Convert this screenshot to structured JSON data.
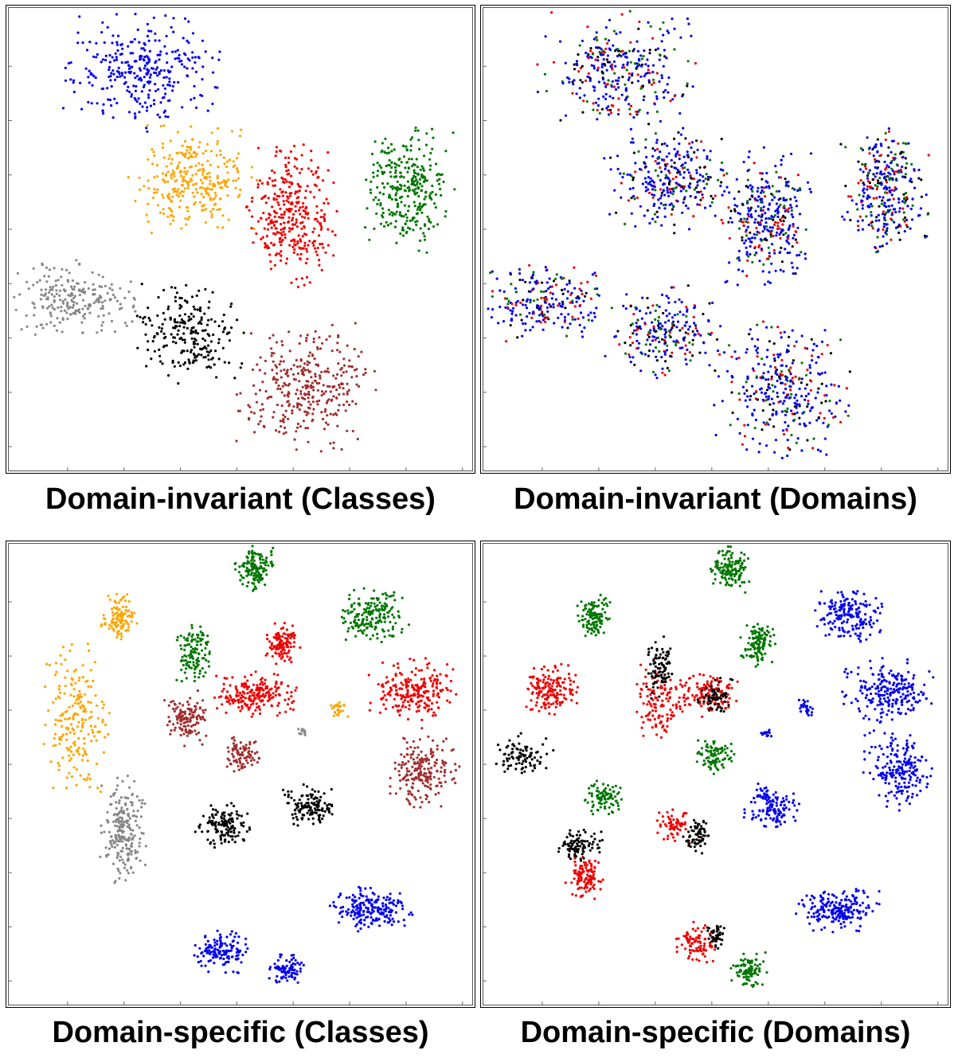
{
  "chart_data": [
    {
      "type": "scatter",
      "title": "Domain-invariant (Classes)",
      "coloring": "classes",
      "clusters": [
        {
          "label": "blue",
          "points": 700,
          "cx": 0.29,
          "cy": 0.14,
          "rx": 0.17,
          "ry": 0.13
        },
        {
          "label": "orange",
          "points": 650,
          "cx": 0.4,
          "cy": 0.37,
          "rx": 0.14,
          "ry": 0.12
        },
        {
          "label": "green",
          "points": 700,
          "cx": 0.86,
          "cy": 0.39,
          "rx": 0.1,
          "ry": 0.14
        },
        {
          "label": "red",
          "points": 750,
          "cx": 0.61,
          "cy": 0.45,
          "rx": 0.1,
          "ry": 0.16
        },
        {
          "label": "gray",
          "points": 500,
          "cx": 0.14,
          "cy": 0.63,
          "rx": 0.14,
          "ry": 0.09
        },
        {
          "label": "black",
          "points": 500,
          "cx": 0.39,
          "cy": 0.7,
          "rx": 0.13,
          "ry": 0.11
        },
        {
          "label": "brown",
          "points": 750,
          "cx": 0.64,
          "cy": 0.82,
          "rx": 0.15,
          "ry": 0.15
        }
      ]
    },
    {
      "type": "scatter",
      "title": "Domain-invariant (Domains)",
      "coloring": "domains",
      "domain_colors": [
        "blue",
        "red",
        "green",
        "black"
      ],
      "clusters": [
        {
          "label": "domains-mixed",
          "points": 700,
          "cx": 0.29,
          "cy": 0.14,
          "rx": 0.17,
          "ry": 0.13
        },
        {
          "label": "domains-mixed",
          "points": 650,
          "cx": 0.4,
          "cy": 0.37,
          "rx": 0.14,
          "ry": 0.12
        },
        {
          "label": "domains-mixed",
          "points": 700,
          "cx": 0.86,
          "cy": 0.39,
          "rx": 0.1,
          "ry": 0.14
        },
        {
          "label": "domains-mixed",
          "points": 750,
          "cx": 0.61,
          "cy": 0.45,
          "rx": 0.1,
          "ry": 0.16
        },
        {
          "label": "domains-mixed",
          "points": 500,
          "cx": 0.14,
          "cy": 0.63,
          "rx": 0.14,
          "ry": 0.09
        },
        {
          "label": "domains-mixed",
          "points": 500,
          "cx": 0.39,
          "cy": 0.7,
          "rx": 0.13,
          "ry": 0.11
        },
        {
          "label": "domains-mixed",
          "points": 750,
          "cx": 0.64,
          "cy": 0.82,
          "rx": 0.15,
          "ry": 0.15
        }
      ]
    },
    {
      "type": "scatter",
      "title": "Domain-specific (Classes)",
      "coloring": "classes",
      "clusters": [
        {
          "label": "green",
          "points": 300,
          "cx": 0.53,
          "cy": 0.06,
          "rx": 0.05,
          "ry": 0.05
        },
        {
          "label": "green",
          "points": 400,
          "cx": 0.78,
          "cy": 0.16,
          "rx": 0.08,
          "ry": 0.06
        },
        {
          "label": "green",
          "points": 260,
          "cx": 0.4,
          "cy": 0.24,
          "rx": 0.04,
          "ry": 0.07
        },
        {
          "label": "orange",
          "points": 250,
          "cx": 0.24,
          "cy": 0.16,
          "rx": 0.04,
          "ry": 0.05
        },
        {
          "label": "orange",
          "points": 450,
          "cx": 0.15,
          "cy": 0.38,
          "rx": 0.07,
          "ry": 0.17
        },
        {
          "label": "orange",
          "points": 60,
          "cx": 0.71,
          "cy": 0.36,
          "rx": 0.02,
          "ry": 0.02
        },
        {
          "label": "red",
          "points": 250,
          "cx": 0.59,
          "cy": 0.22,
          "rx": 0.04,
          "ry": 0.05
        },
        {
          "label": "red",
          "points": 450,
          "cx": 0.53,
          "cy": 0.33,
          "rx": 0.09,
          "ry": 0.05
        },
        {
          "label": "red",
          "points": 500,
          "cx": 0.87,
          "cy": 0.32,
          "rx": 0.1,
          "ry": 0.07
        },
        {
          "label": "brown",
          "points": 300,
          "cx": 0.38,
          "cy": 0.38,
          "rx": 0.05,
          "ry": 0.06
        },
        {
          "label": "brown",
          "points": 200,
          "cx": 0.5,
          "cy": 0.46,
          "rx": 0.04,
          "ry": 0.04
        },
        {
          "label": "brown",
          "points": 450,
          "cx": 0.89,
          "cy": 0.49,
          "rx": 0.08,
          "ry": 0.09
        },
        {
          "label": "gray",
          "points": 30,
          "cx": 0.63,
          "cy": 0.41,
          "rx": 0.015,
          "ry": 0.012
        },
        {
          "label": "gray",
          "points": 500,
          "cx": 0.25,
          "cy": 0.62,
          "rx": 0.05,
          "ry": 0.12
        },
        {
          "label": "black",
          "points": 300,
          "cx": 0.46,
          "cy": 0.61,
          "rx": 0.06,
          "ry": 0.05
        },
        {
          "label": "black",
          "points": 300,
          "cx": 0.65,
          "cy": 0.57,
          "rx": 0.06,
          "ry": 0.05
        },
        {
          "label": "blue",
          "points": 450,
          "cx": 0.78,
          "cy": 0.79,
          "rx": 0.09,
          "ry": 0.05
        },
        {
          "label": "blue",
          "points": 300,
          "cx": 0.46,
          "cy": 0.88,
          "rx": 0.06,
          "ry": 0.05
        },
        {
          "label": "blue",
          "points": 200,
          "cx": 0.6,
          "cy": 0.92,
          "rx": 0.04,
          "ry": 0.04
        }
      ]
    },
    {
      "type": "scatter",
      "title": "Domain-specific (Domains)",
      "coloring": "domains",
      "clusters": [
        {
          "label": "green",
          "points": 300,
          "cx": 0.53,
          "cy": 0.06,
          "rx": 0.05,
          "ry": 0.05
        },
        {
          "label": "green",
          "points": 250,
          "cx": 0.24,
          "cy": 0.16,
          "rx": 0.04,
          "ry": 0.05
        },
        {
          "label": "green",
          "points": 250,
          "cx": 0.59,
          "cy": 0.22,
          "rx": 0.04,
          "ry": 0.05
        },
        {
          "label": "green",
          "points": 200,
          "cx": 0.5,
          "cy": 0.46,
          "rx": 0.04,
          "ry": 0.04
        },
        {
          "label": "green",
          "points": 200,
          "cx": 0.26,
          "cy": 0.55,
          "rx": 0.04,
          "ry": 0.04
        },
        {
          "label": "green",
          "points": 200,
          "cx": 0.57,
          "cy": 0.92,
          "rx": 0.04,
          "ry": 0.04
        },
        {
          "label": "blue",
          "points": 400,
          "cx": 0.78,
          "cy": 0.16,
          "rx": 0.08,
          "ry": 0.06
        },
        {
          "label": "blue",
          "points": 500,
          "cx": 0.87,
          "cy": 0.32,
          "rx": 0.1,
          "ry": 0.07
        },
        {
          "label": "blue",
          "points": 450,
          "cx": 0.89,
          "cy": 0.49,
          "rx": 0.08,
          "ry": 0.09
        },
        {
          "label": "blue",
          "points": 60,
          "cx": 0.69,
          "cy": 0.36,
          "rx": 0.02,
          "ry": 0.02
        },
        {
          "label": "blue",
          "points": 30,
          "cx": 0.61,
          "cy": 0.41,
          "rx": 0.015,
          "ry": 0.012
        },
        {
          "label": "blue",
          "points": 300,
          "cx": 0.62,
          "cy": 0.57,
          "rx": 0.06,
          "ry": 0.05
        },
        {
          "label": "blue",
          "points": 450,
          "cx": 0.76,
          "cy": 0.79,
          "rx": 0.09,
          "ry": 0.05
        },
        {
          "label": "red",
          "points": 350,
          "cx": 0.15,
          "cy": 0.32,
          "rx": 0.06,
          "ry": 0.06
        },
        {
          "label": "red",
          "points": 250,
          "cx": 0.38,
          "cy": 0.35,
          "rx": 0.05,
          "ry": 0.09
        },
        {
          "label": "red",
          "points": 300,
          "cx": 0.48,
          "cy": 0.33,
          "rx": 0.07,
          "ry": 0.05
        },
        {
          "label": "red",
          "points": 150,
          "cx": 0.41,
          "cy": 0.61,
          "rx": 0.04,
          "ry": 0.04
        },
        {
          "label": "red",
          "points": 250,
          "cx": 0.22,
          "cy": 0.72,
          "rx": 0.04,
          "ry": 0.05
        },
        {
          "label": "red",
          "points": 200,
          "cx": 0.46,
          "cy": 0.86,
          "rx": 0.05,
          "ry": 0.05
        },
        {
          "label": "black",
          "points": 200,
          "cx": 0.09,
          "cy": 0.46,
          "rx": 0.07,
          "ry": 0.05
        },
        {
          "label": "black",
          "points": 200,
          "cx": 0.38,
          "cy": 0.27,
          "rx": 0.03,
          "ry": 0.07
        },
        {
          "label": "black",
          "points": 150,
          "cx": 0.5,
          "cy": 0.33,
          "rx": 0.04,
          "ry": 0.04
        },
        {
          "label": "black",
          "points": 150,
          "cx": 0.46,
          "cy": 0.63,
          "rx": 0.03,
          "ry": 0.04
        },
        {
          "label": "black",
          "points": 200,
          "cx": 0.21,
          "cy": 0.65,
          "rx": 0.05,
          "ry": 0.04
        },
        {
          "label": "black",
          "points": 100,
          "cx": 0.5,
          "cy": 0.85,
          "rx": 0.02,
          "ry": 0.03
        }
      ]
    }
  ],
  "colors": {
    "blue": "#0000ee",
    "orange": "#ffa500",
    "green": "#007700",
    "red": "#ee0000",
    "gray": "#888888",
    "black": "#000000",
    "brown": "#a03030"
  }
}
